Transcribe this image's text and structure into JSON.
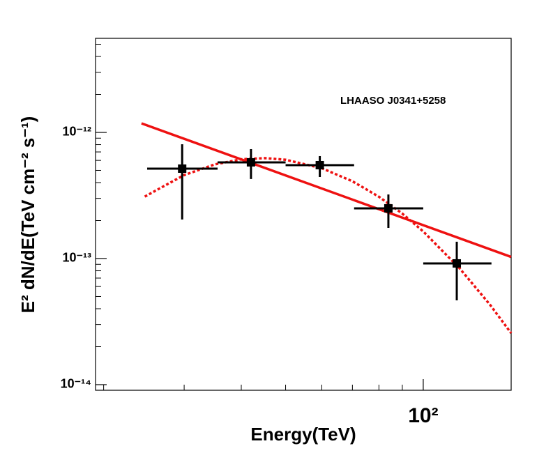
{
  "chart_data": {
    "type": "scatter",
    "annotation": "LHAASO J0341+5258",
    "x_label": "Energy(TeV)",
    "y_label": "E² dN/dE(TeV cm⁻² s⁻¹)",
    "xlog": true,
    "ylog": true,
    "xlim": [
      19.2,
      155.7
    ],
    "ylim": [
      9.03e-15,
      5.57e-12
    ],
    "xticks": [
      {
        "value": 100,
        "label": "10²"
      }
    ],
    "xminorticks": [
      20,
      30,
      40,
      50,
      60,
      70,
      80,
      90
    ],
    "yticks": [
      {
        "value": 1e-14,
        "label": "10⁻¹⁴"
      },
      {
        "value": 1e-13,
        "label": "10⁻¹³"
      },
      {
        "value": 1e-12,
        "label": "10⁻¹²"
      }
    ],
    "yminorticks": [
      2e-14,
      3e-14,
      4e-14,
      5e-14,
      6e-14,
      7e-14,
      8e-14,
      9e-14,
      2e-13,
      3e-13,
      4e-13,
      5e-13,
      6e-13,
      7e-13,
      8e-13,
      9e-13,
      2e-12,
      3e-12,
      4e-12,
      5e-12
    ],
    "points": {
      "color": "#000000",
      "x": [
        29.7,
        42.0,
        59.4,
        83.9,
        118.4
      ],
      "values": [
        5.16e-13,
        5.79e-13,
        5.5e-13,
        2.5e-13,
        9.15e-14
      ],
      "xmin": [
        24.9,
        35.5,
        50,
        70.6,
        100
      ],
      "xmax": [
        35.5,
        50,
        70.6,
        100,
        141
      ],
      "ymin": [
        2.04e-13,
        4.27e-13,
        4.43e-13,
        1.75e-13,
        4.66e-14
      ],
      "ymax": [
        8.06e-13,
        7.37e-13,
        6.49e-13,
        3.22e-13,
        1.36e-13
      ]
    },
    "curves": [
      {
        "color": "#ee1111",
        "style": "solid",
        "x": [
          24.2,
          155.7
        ],
        "values": [
          1.18e-12,
          1.03e-13
        ]
      },
      {
        "color": "#ee1111",
        "style": "dotted",
        "x": [
          24.6,
          30,
          35,
          40,
          45,
          50,
          60,
          70,
          80,
          90,
          100,
          120,
          140,
          155.7
        ],
        "values": [
          3.1e-13,
          4.59e-13,
          5.58e-13,
          6.12e-13,
          6.25e-13,
          6.07e-13,
          5.2e-13,
          4.1e-13,
          3.09e-13,
          2.27e-13,
          1.64e-13,
          8.4e-14,
          4.3e-14,
          2.56e-14
        ]
      }
    ]
  }
}
